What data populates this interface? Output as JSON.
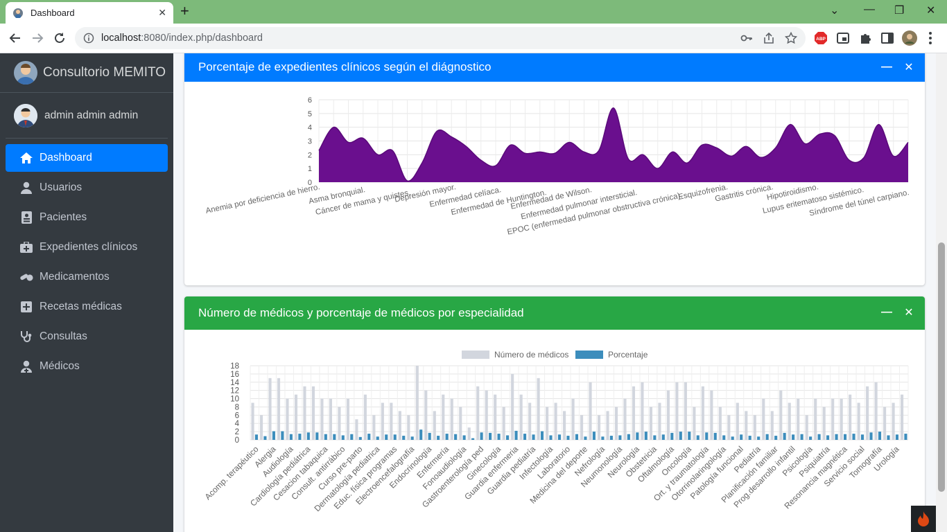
{
  "browser": {
    "tab_title": "Dashboard",
    "url_host": "localhost",
    "url_rest": ":8080/index.php/dashboard"
  },
  "sidebar": {
    "brand": "Consultorio MEMITO",
    "user": "admin admin admin",
    "items": [
      {
        "label": "Dashboard",
        "icon": "home-icon",
        "active": true
      },
      {
        "label": "Usuarios",
        "icon": "user-icon"
      },
      {
        "label": "Pacientes",
        "icon": "id-card-icon"
      },
      {
        "label": "Expedientes clínicos",
        "icon": "medkit-icon"
      },
      {
        "label": "Medicamentos",
        "icon": "pills-icon"
      },
      {
        "label": "Recetas médicas",
        "icon": "plus-square-icon"
      },
      {
        "label": "Consultas",
        "icon": "stethoscope-icon"
      },
      {
        "label": "Médicos",
        "icon": "user-md-icon"
      }
    ]
  },
  "cards": {
    "diagnostico": {
      "title": "Porcentaje de expedientes clínicos según el diágnostico",
      "color": "#007bff"
    },
    "especialidad": {
      "title": "Número de médicos y porcentaje de médicos por especialidad",
      "color": "#28a745"
    }
  },
  "chart_data": [
    {
      "type": "area",
      "title": "",
      "ylim": [
        0,
        6
      ],
      "yticks": [
        0,
        1,
        2,
        3,
        4,
        5,
        6
      ],
      "color": "#6a0f8e",
      "x_labels": [
        "Anemia por deficiencia de hierro.",
        "Asma bronquial.",
        "Cáncer de mama y quistes.",
        "Depresión mayor.",
        "Enfermedad celíaca.",
        "Enfermedad de Huntington.",
        "Enfermedad de Wilson.",
        "Enfermedad pulmonar intersticial.",
        "EPOC (enfermedad pulmonar obstructiva crónica).",
        "Esquizofrenia.",
        "Gastritis crónica.",
        "Hipotiroidismo.",
        "Lupus eritematoso sistémico.",
        "Síndrome del túnel carpiano."
      ],
      "values": [
        2.3,
        4.0,
        2.9,
        3.2,
        2.0,
        2.3,
        0.1,
        1.4,
        3.7,
        3.3,
        2.6,
        1.6,
        1.2,
        2.7,
        2.1,
        2.2,
        2.1,
        2.9,
        2.2,
        2.3,
        5.4,
        1.7,
        2.0,
        1.0,
        2.2,
        1.4,
        2.7,
        2.5,
        1.9,
        2.6,
        1.8,
        2.5,
        4.2,
        2.8,
        3.5,
        3.4,
        1.6,
        1.8,
        4.2,
        1.9,
        2.9
      ]
    },
    {
      "type": "bar",
      "title": "",
      "ylim": [
        0,
        18
      ],
      "yticks": [
        0,
        2,
        4,
        6,
        8,
        10,
        12,
        14,
        16,
        18
      ],
      "legend": "top",
      "series": [
        {
          "name": "Número de médicos",
          "color": "#d2d6de",
          "values": [
            9,
            6,
            15,
            15,
            10,
            11,
            13,
            13,
            10,
            10,
            8,
            10,
            5,
            11,
            6,
            9,
            9,
            7,
            6,
            18,
            12,
            7,
            11,
            10,
            8,
            3,
            13,
            12,
            11,
            8,
            16,
            11,
            9,
            15,
            8,
            9,
            7,
            10,
            6,
            14,
            6,
            7,
            8,
            10,
            13,
            14,
            8,
            9,
            12,
            14,
            14,
            8,
            13,
            12,
            8,
            6,
            9,
            7,
            6,
            10,
            7,
            12,
            9,
            10,
            6,
            10,
            8,
            10,
            10,
            11,
            9,
            13,
            14,
            8,
            9,
            11
          ]
        },
        {
          "name": "Porcentaje",
          "color": "#3c8dbc",
          "values": [
            1.3,
            0.9,
            2.1,
            2.1,
            1.4,
            1.5,
            1.8,
            1.8,
            1.4,
            1.4,
            1.1,
            1.4,
            0.7,
            1.5,
            0.8,
            1.3,
            1.3,
            1.0,
            0.8,
            2.5,
            1.7,
            1.0,
            1.5,
            1.4,
            1.1,
            0.4,
            1.8,
            1.7,
            1.5,
            1.1,
            2.2,
            1.5,
            1.3,
            2.1,
            1.1,
            1.3,
            1.0,
            1.4,
            0.8,
            2.0,
            0.8,
            1.0,
            1.1,
            1.4,
            1.8,
            2.0,
            1.1,
            1.3,
            1.7,
            2.0,
            2.0,
            1.1,
            1.8,
            1.7,
            1.1,
            0.8,
            1.3,
            1.0,
            0.8,
            1.4,
            1.0,
            1.7,
            1.3,
            1.4,
            0.8,
            1.4,
            1.1,
            1.4,
            1.4,
            1.5,
            1.3,
            1.8,
            2.0,
            1.1,
            1.3,
            1.5
          ]
        }
      ],
      "x_labels": [
        "Acomp. terapéutico",
        "Alergia",
        "Audiología",
        "Cardiología pediátrica",
        "Cesacion tabaquica",
        "Consult. antirrábico",
        "Curso pre-parto",
        "Dermatología pediatrica",
        "Educ. física programas",
        "Electroencefalografía",
        "Endocrinología",
        "Enfermería",
        "Fonoaudiología",
        "Gastroenterología ped",
        "Ginecología",
        "Guardia enfermeria",
        "Guardia pediatría",
        "Infectología",
        "Laboratorio",
        "Medicina del deporte",
        "Nefrología",
        "Neumonología",
        "Neurología",
        "Obstetricia",
        "Oftalmología",
        "Oncología",
        "Ort. y traumatología",
        "Otorrinolaringología",
        "Patología funcional",
        "Pediatría",
        "Planificación familiar",
        "Prog.desarrollo infantil",
        "Psicología",
        "Psiquiatría",
        "Resonancia magnética",
        "Servicio social",
        "Tomografía",
        "Urología"
      ]
    }
  ]
}
